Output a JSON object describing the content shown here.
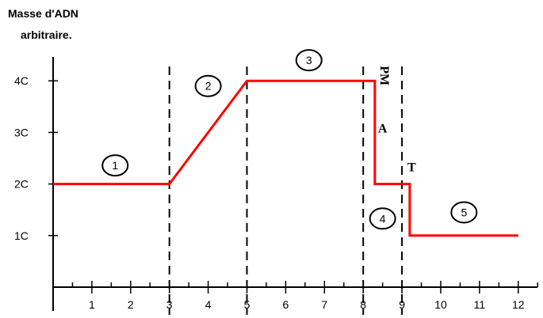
{
  "chart_data": {
    "type": "line",
    "ylabel_line1": "Masse d'ADN",
    "ylabel_line2": "arbitraire.",
    "xlabel": "",
    "x_ticks": [
      "1",
      "2",
      "3",
      "4",
      "5",
      "6",
      "7",
      "8",
      "9",
      "10",
      "11",
      "12"
    ],
    "y_ticks": [
      "1C",
      "2C",
      "3C",
      "4C"
    ],
    "xlim": [
      0,
      12.5
    ],
    "ylim": [
      0,
      4.5
    ],
    "series": [
      {
        "x": [
          0,
          3,
          5,
          8.3,
          8.3,
          9.2,
          9.2,
          12
        ],
        "y": [
          2,
          2,
          4,
          4,
          2,
          2,
          1,
          1
        ]
      }
    ],
    "dashed_vlines": [
      3,
      5,
      8,
      9
    ],
    "phase_labels": [
      {
        "text": "1",
        "x": 1.6,
        "y": 2.36
      },
      {
        "text": "2",
        "x": 4.0,
        "y": 3.9
      },
      {
        "text": "3",
        "x": 6.6,
        "y": 4.4
      },
      {
        "text": "4",
        "x": 8.5,
        "y": 1.33
      },
      {
        "text": "5",
        "x": 10.6,
        "y": 1.45
      }
    ],
    "annotations": [
      {
        "text": "PM",
        "x": 8.45,
        "y": 4.1,
        "rotate": 90
      },
      {
        "text": "A",
        "x": 8.5,
        "y": 3.0
      },
      {
        "text": "T",
        "x": 9.25,
        "y": 2.25
      }
    ],
    "colors": {
      "line": "#ff0000",
      "axis": "#000000"
    }
  }
}
